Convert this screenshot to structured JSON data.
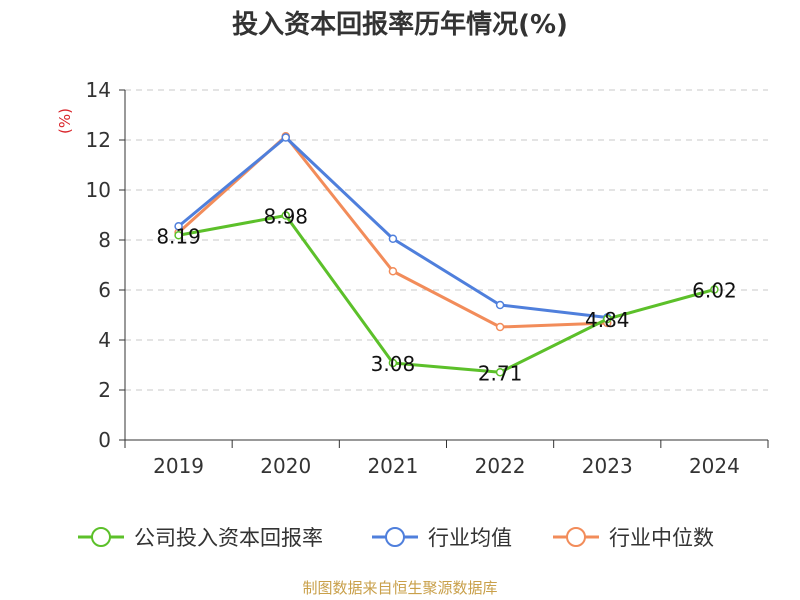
{
  "chart_data": {
    "type": "line",
    "title": "投入资本回报率历年情况(%)",
    "ylabel": "(%)",
    "xlabel": "",
    "categories": [
      "2019",
      "2020",
      "2021",
      "2022",
      "2023",
      "2024"
    ],
    "ylim": [
      0,
      14
    ],
    "yticks": [
      0,
      2,
      4,
      6,
      8,
      10,
      12,
      14
    ],
    "grid": true,
    "legend_position": "bottom",
    "series": [
      {
        "name": "公司投入资本回报率",
        "color": "#5cc02a",
        "values": [
          8.19,
          8.98,
          3.08,
          2.71,
          4.84,
          6.02
        ],
        "labels": [
          "8.19",
          "8.98",
          "3.08",
          "2.71",
          "4.84",
          "6.02"
        ]
      },
      {
        "name": "行业均值",
        "color": "#4f7fdc",
        "values": [
          8.55,
          12.1,
          8.05,
          5.4,
          4.9,
          null
        ]
      },
      {
        "name": "行业中位数",
        "color": "#f28c5a",
        "values": [
          8.3,
          12.15,
          6.75,
          4.52,
          4.68,
          null
        ]
      }
    ]
  },
  "footer": {
    "source": "制图数据来自恒生聚源数据库"
  }
}
